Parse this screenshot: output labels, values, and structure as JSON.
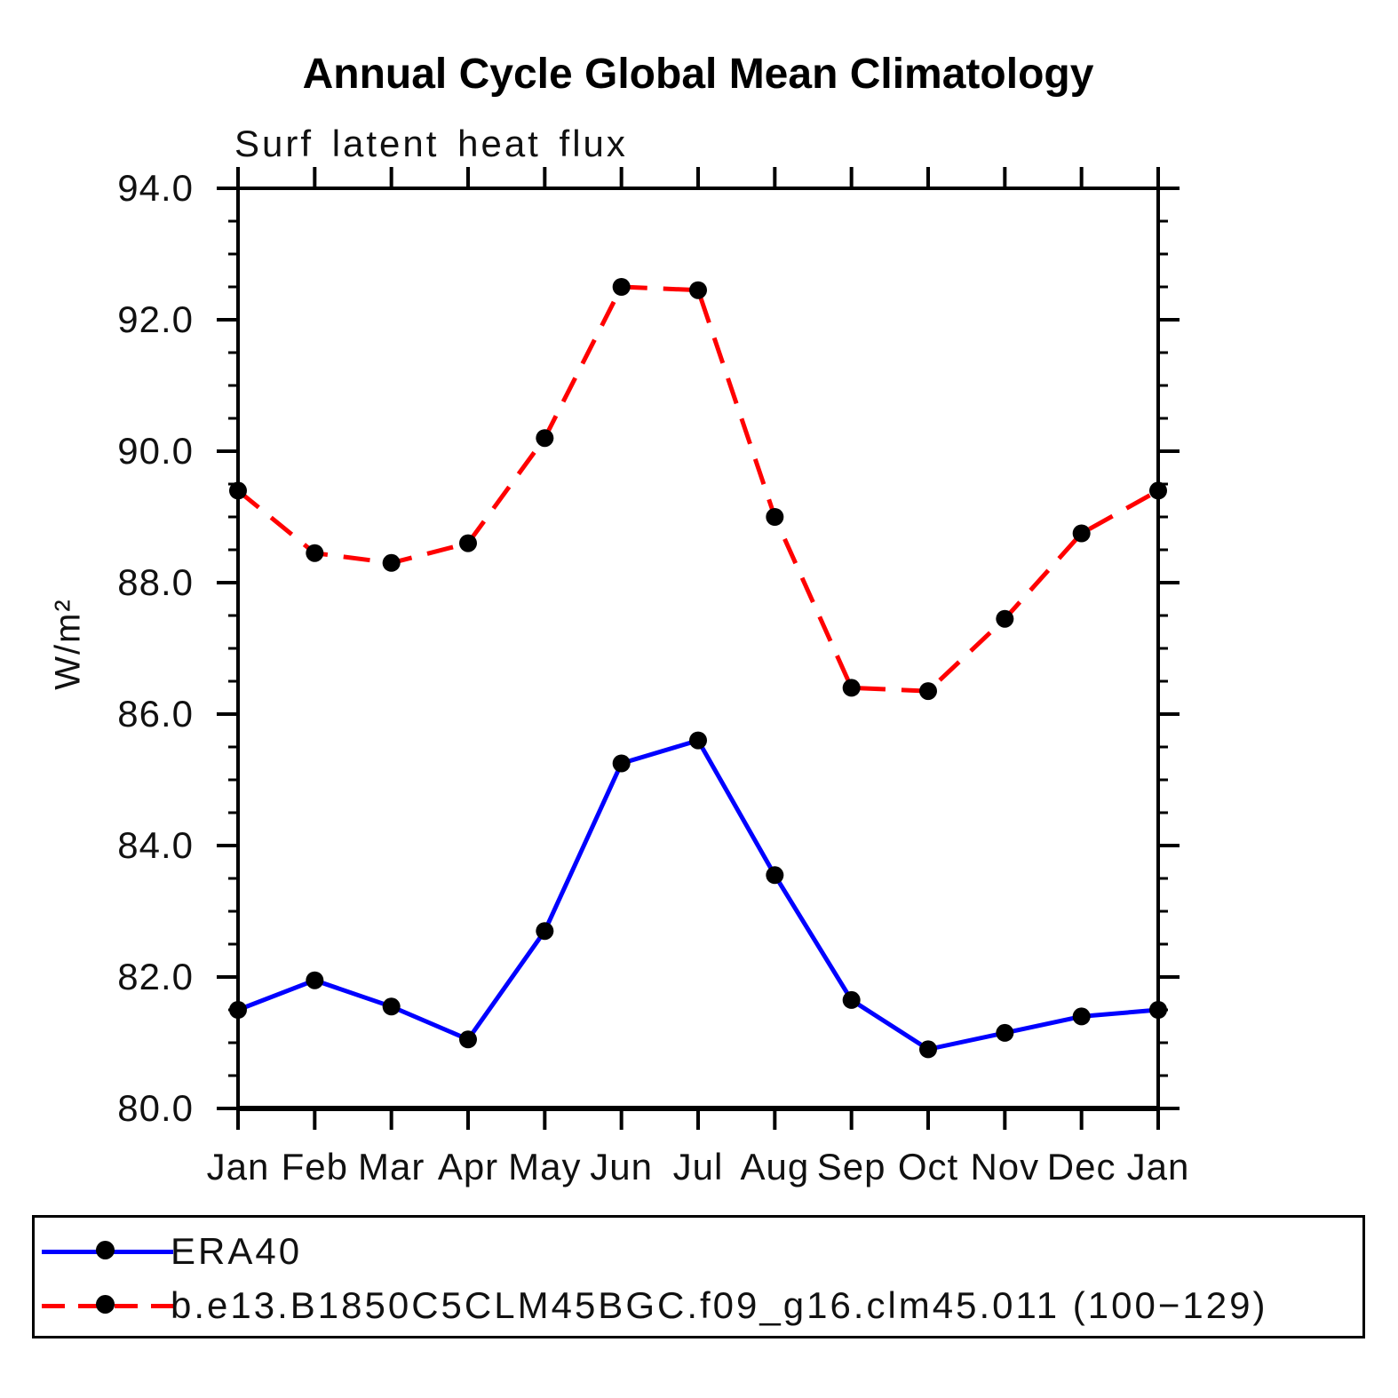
{
  "chart_data": {
    "type": "line",
    "title": "Annual Cycle Global Mean Climatology",
    "subtitle": "Surf latent heat flux",
    "xlabel": "",
    "ylabel": "W/m²",
    "ylim": [
      80.0,
      94.0
    ],
    "y_major_step": 2.0,
    "y_minor_step": 0.5,
    "grid": false,
    "legend_position": "bottom-left box",
    "x_tick_labels": [
      "Jan",
      "Feb",
      "Mar",
      "Apr",
      "May",
      "Jun",
      "Jul",
      "Aug",
      "Sep",
      "Oct",
      "Nov",
      "Dec",
      "Jan"
    ],
    "y_tick_labels": [
      "94.0",
      "92.0",
      "90.0",
      "88.0",
      "86.0",
      "84.0",
      "82.0",
      "80.0"
    ],
    "axis_color": "#000000",
    "marker_color": "#000000",
    "series": [
      {
        "name": "ERA40",
        "color": "#0000ff",
        "style": "solid",
        "marker": "filled-circle",
        "values": [
          81.5,
          81.95,
          81.55,
          81.05,
          82.7,
          85.25,
          85.6,
          83.55,
          81.65,
          80.9,
          81.15,
          81.4,
          81.5
        ]
      },
      {
        "name": "b.e13.B1850C5CLM45BGC.f09_g16.clm45.011 (100−129)",
        "color": "#ff0000",
        "style": "dashed",
        "marker": "filled-circle",
        "values": [
          89.4,
          88.45,
          88.3,
          88.6,
          90.2,
          92.5,
          92.45,
          89.0,
          86.4,
          86.35,
          87.45,
          88.75,
          89.4
        ]
      }
    ]
  }
}
